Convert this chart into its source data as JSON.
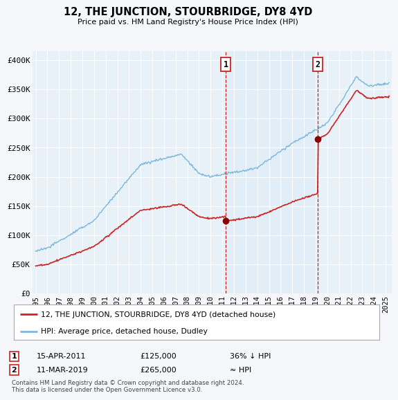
{
  "title": "12, THE JUNCTION, STOURBRIDGE, DY8 4YD",
  "subtitle": "Price paid vs. HM Land Registry's House Price Index (HPI)",
  "ylabel_ticks": [
    "£0",
    "£50K",
    "£100K",
    "£150K",
    "£200K",
    "£250K",
    "£300K",
    "£350K",
    "£400K"
  ],
  "ytick_values": [
    0,
    50000,
    100000,
    150000,
    200000,
    250000,
    300000,
    350000,
    400000
  ],
  "ylim": [
    0,
    415000
  ],
  "xlim_start": 1994.7,
  "xlim_end": 2025.5,
  "hpi_color": "#7ab8d9",
  "property_color": "#cc2222",
  "marker_color": "#8b0000",
  "annotation_box_color": "#cc2222",
  "shading_color": "#e0eef8",
  "background_color": "#f5f7fa",
  "plot_bg_color": "#e8f0f8",
  "grid_color": "#ffffff",
  "legend_label_property": "12, THE JUNCTION, STOURBRIDGE, DY8 4YD (detached house)",
  "legend_label_hpi": "HPI: Average price, detached house, Dudley",
  "event1_label": "1",
  "event1_date": "15-APR-2011",
  "event1_price": "£125,000",
  "event1_note": "36% ↓ HPI",
  "event2_label": "2",
  "event2_date": "11-MAR-2019",
  "event2_price": "£265,000",
  "event2_note": "≈ HPI",
  "footnote": "Contains HM Land Registry data © Crown copyright and database right 2024.\nThis data is licensed under the Open Government Licence v3.0.",
  "event1_x": 2011.29,
  "event1_y": 125000,
  "event2_x": 2019.19,
  "event2_y": 265000
}
